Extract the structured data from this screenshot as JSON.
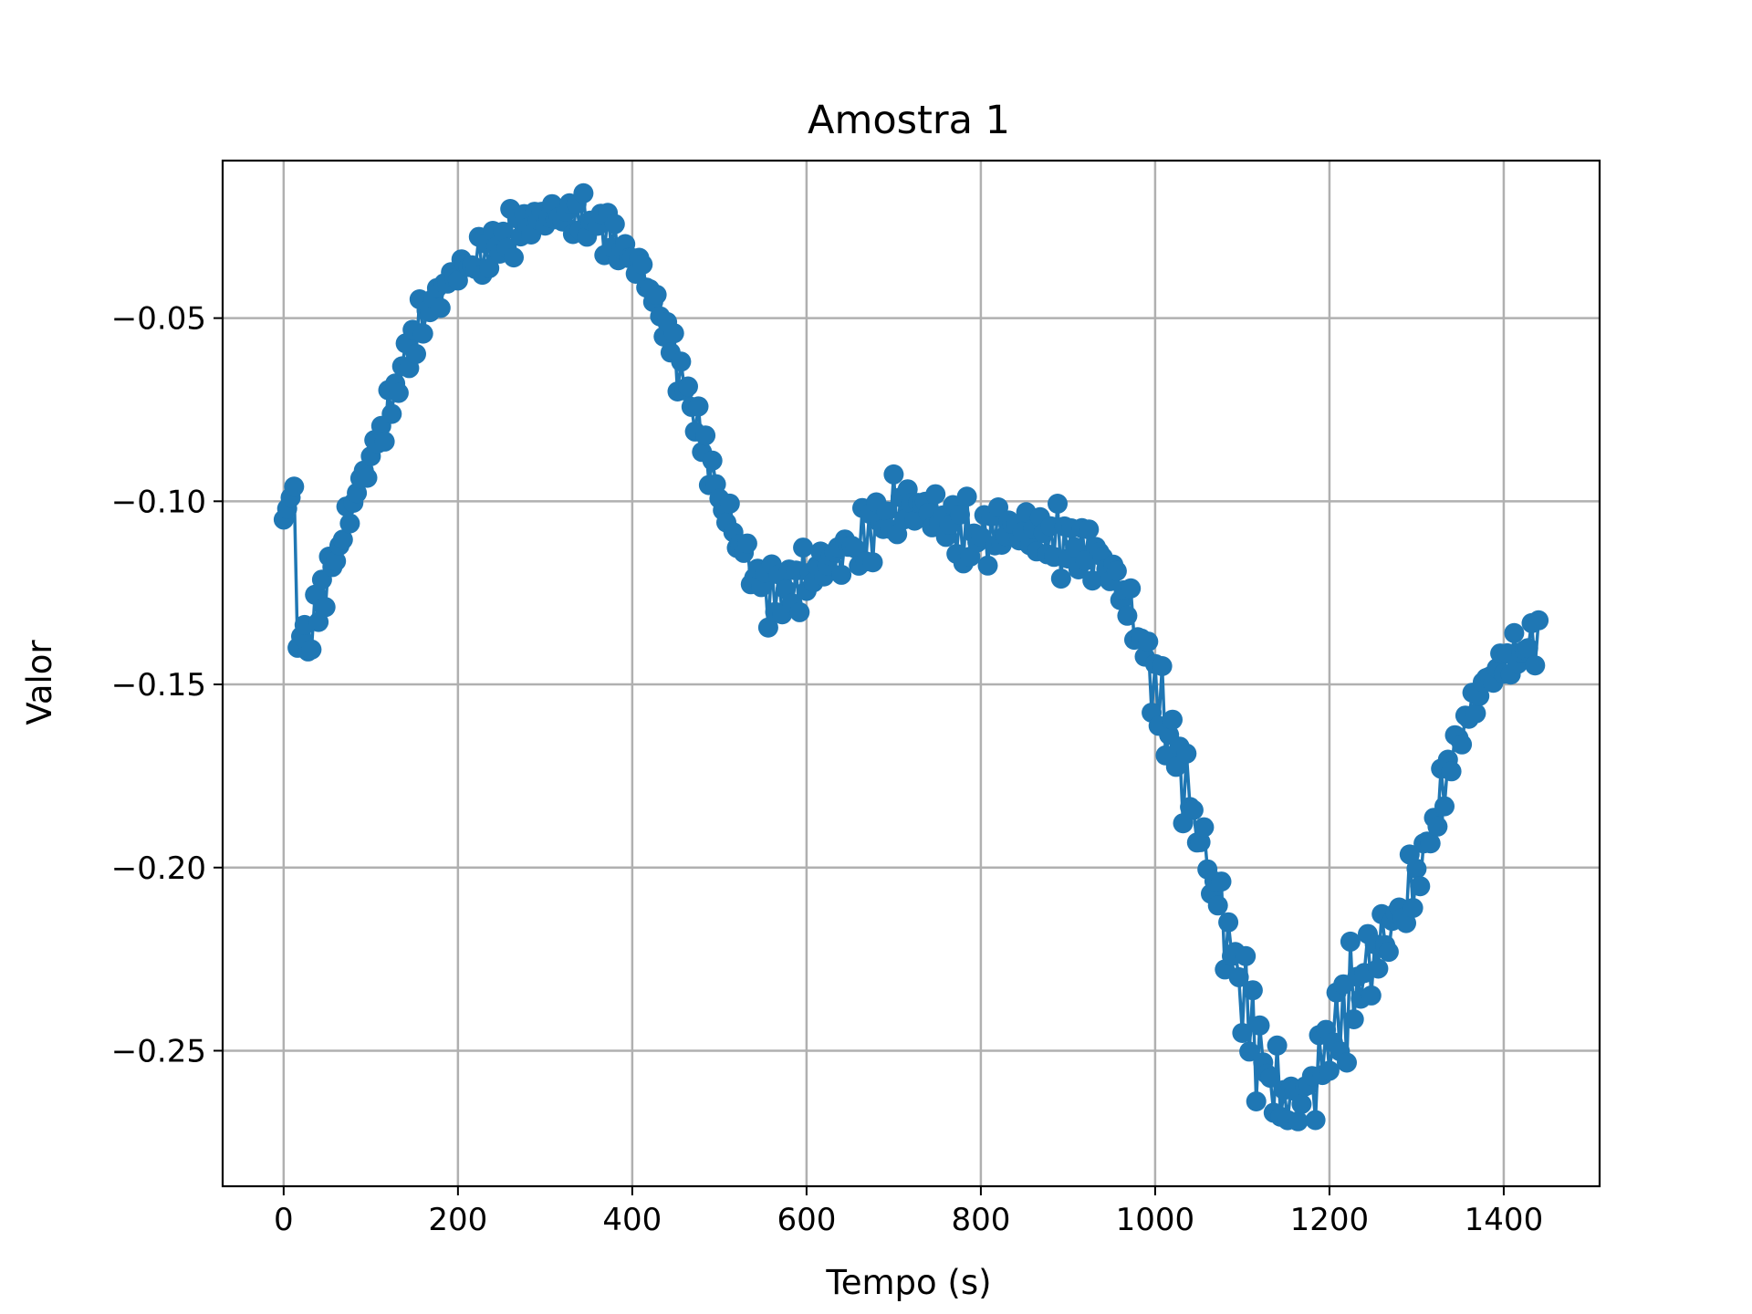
{
  "chart_data": {
    "type": "line",
    "title": "Amostra 1",
    "xlabel": "Tempo (s)",
    "ylabel": "Valor",
    "xlim": [
      -70,
      1510
    ],
    "ylim": [
      -0.287,
      -0.007
    ],
    "xticks": [
      0,
      200,
      400,
      600,
      800,
      1000,
      1200,
      1400
    ],
    "xtick_labels": [
      "0",
      "200",
      "400",
      "600",
      "800",
      "1000",
      "1200",
      "1400"
    ],
    "yticks": [
      -0.05,
      -0.1,
      -0.15,
      -0.2,
      -0.25
    ],
    "ytick_labels": [
      "−0.05",
      "−0.10",
      "−0.15",
      "−0.20",
      "−0.25"
    ],
    "grid": true,
    "series": [
      {
        "color": "#1f77b4",
        "marker": "circle",
        "x_start": 0,
        "x_step": 4,
        "x_end": 1440,
        "anchors": [
          [
            0,
            -0.105
          ],
          [
            12,
            -0.096
          ],
          [
            14,
            -0.103
          ],
          [
            16,
            -0.14
          ],
          [
            25,
            -0.133
          ],
          [
            28,
            -0.141
          ],
          [
            40,
            -0.128
          ],
          [
            60,
            -0.115
          ],
          [
            80,
            -0.1
          ],
          [
            100,
            -0.088
          ],
          [
            120,
            -0.076
          ],
          [
            140,
            -0.061
          ],
          [
            160,
            -0.05
          ],
          [
            180,
            -0.043
          ],
          [
            200,
            -0.037
          ],
          [
            230,
            -0.033
          ],
          [
            260,
            -0.027
          ],
          [
            300,
            -0.022
          ],
          [
            340,
            -0.022
          ],
          [
            370,
            -0.026
          ],
          [
            395,
            -0.033
          ],
          [
            410,
            -0.036
          ],
          [
            425,
            -0.045
          ],
          [
            440,
            -0.054
          ],
          [
            455,
            -0.065
          ],
          [
            470,
            -0.075
          ],
          [
            485,
            -0.087
          ],
          [
            500,
            -0.099
          ],
          [
            520,
            -0.11
          ],
          [
            540,
            -0.12
          ],
          [
            560,
            -0.126
          ],
          [
            580,
            -0.124
          ],
          [
            600,
            -0.121
          ],
          [
            620,
            -0.117
          ],
          [
            640,
            -0.114
          ],
          [
            660,
            -0.112
          ],
          [
            680,
            -0.107
          ],
          [
            700,
            -0.102
          ],
          [
            720,
            -0.101
          ],
          [
            740,
            -0.102
          ],
          [
            760,
            -0.106
          ],
          [
            780,
            -0.109
          ],
          [
            800,
            -0.11
          ],
          [
            820,
            -0.108
          ],
          [
            840,
            -0.107
          ],
          [
            860,
            -0.109
          ],
          [
            880,
            -0.11
          ],
          [
            900,
            -0.112
          ],
          [
            920,
            -0.113
          ],
          [
            940,
            -0.116
          ],
          [
            960,
            -0.123
          ],
          [
            980,
            -0.136
          ],
          [
            1000,
            -0.15
          ],
          [
            1020,
            -0.166
          ],
          [
            1040,
            -0.182
          ],
          [
            1060,
            -0.199
          ],
          [
            1080,
            -0.216
          ],
          [
            1100,
            -0.234
          ],
          [
            1120,
            -0.252
          ],
          [
            1140,
            -0.261
          ],
          [
            1160,
            -0.265
          ],
          [
            1180,
            -0.26
          ],
          [
            1200,
            -0.248
          ],
          [
            1220,
            -0.238
          ],
          [
            1240,
            -0.229
          ],
          [
            1260,
            -0.221
          ],
          [
            1280,
            -0.213
          ],
          [
            1300,
            -0.203
          ],
          [
            1320,
            -0.188
          ],
          [
            1340,
            -0.17
          ],
          [
            1360,
            -0.158
          ],
          [
            1380,
            -0.149
          ],
          [
            1400,
            -0.144
          ],
          [
            1420,
            -0.141
          ],
          [
            1440,
            -0.137
          ]
        ]
      }
    ]
  }
}
